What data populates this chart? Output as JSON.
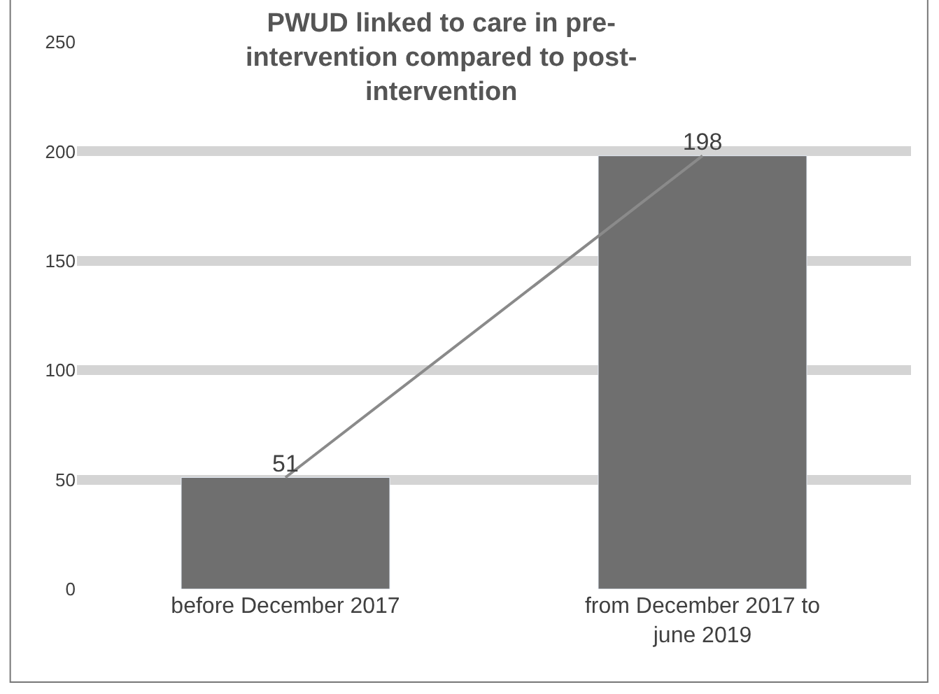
{
  "chart_data": {
    "type": "bar",
    "title": "PWUD linked to care in pre-intervention compared to post-intervention",
    "categories": [
      "before December 2017",
      "from December 2017 to june 2019"
    ],
    "series": [
      {
        "color": "#6f6f6f",
        "values": [
          51,
          198
        ]
      },
      {
        "type": "line",
        "color": "#8a8a8a",
        "values": [
          51,
          198
        ],
        "value_labels": [
          "51",
          "198"
        ]
      }
    ],
    "ylim": [
      0,
      250
    ],
    "yticks": [
      0,
      50,
      100,
      150,
      200,
      250
    ],
    "grid": "y",
    "legend": false,
    "marker": "none"
  }
}
